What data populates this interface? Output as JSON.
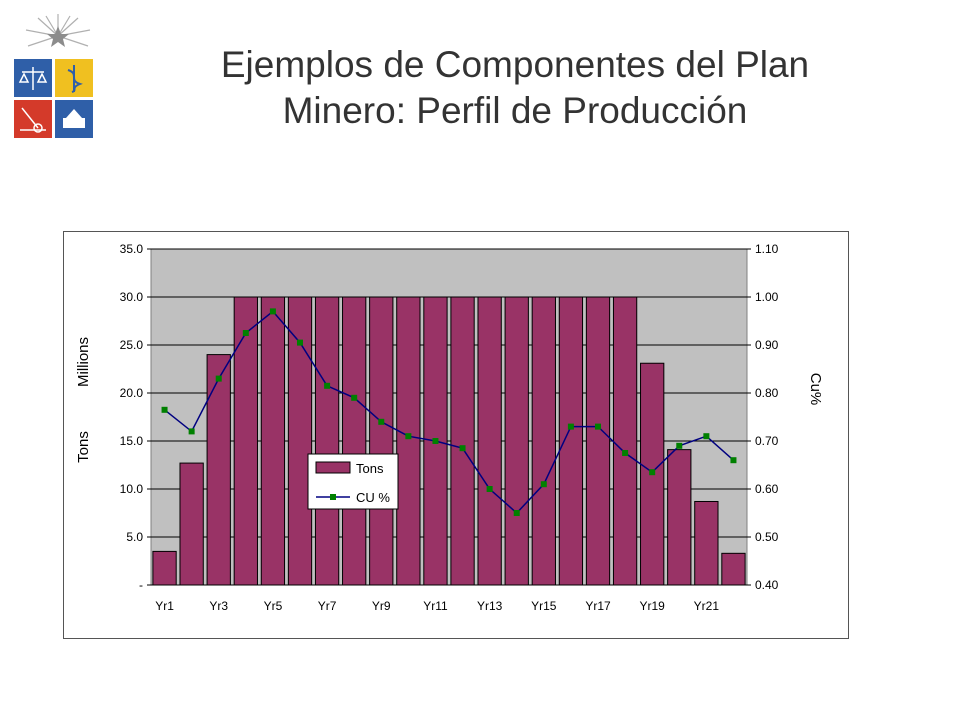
{
  "slide": {
    "title_line1": "Ejemplos de Componentes del Plan",
    "title_line2": "Minero: Perfil de Producción"
  },
  "logo": {
    "icon": "university-coat-of-arms-icon"
  },
  "colors": {
    "bar_fill": "#993366",
    "bar_stroke": "#000000",
    "line": "#000080",
    "marker": "#008000",
    "plot_background": "#c0c0c0",
    "title_text": "#333333"
  },
  "chart_data": {
    "type": "bar",
    "categories": [
      "Yr1",
      "Yr2",
      "Yr3",
      "Yr4",
      "Yr5",
      "Yr6",
      "Yr7",
      "Yr8",
      "Yr9",
      "Yr10",
      "Yr11",
      "Yr12",
      "Yr13",
      "Yr14",
      "Yr15",
      "Yr16",
      "Yr17",
      "Yr18",
      "Yr19",
      "Yr20",
      "Yr21",
      "Yr22"
    ],
    "tick_labels": [
      "Yr1",
      "Yr3",
      "Yr5",
      "Yr7",
      "Yr9",
      "Yr11",
      "Yr13",
      "Yr15",
      "Yr17",
      "Yr19",
      "Yr21"
    ],
    "series": [
      {
        "name": "Tons",
        "type": "bar",
        "axis": "left",
        "values": [
          3.5,
          12.7,
          24.0,
          30.0,
          30.0,
          30.0,
          30.0,
          30.0,
          30.0,
          30.0,
          30.0,
          30.0,
          30.0,
          30.0,
          30.0,
          30.0,
          30.0,
          30.0,
          23.1,
          14.1,
          8.7,
          3.3
        ]
      },
      {
        "name": "CU %",
        "type": "line",
        "axis": "right",
        "values": [
          0.765,
          0.72,
          0.83,
          0.925,
          0.97,
          0.905,
          0.815,
          0.79,
          0.74,
          0.71,
          0.7,
          0.685,
          0.6,
          0.55,
          0.61,
          0.73,
          0.73,
          0.675,
          0.635,
          0.69,
          0.71,
          0.66
        ]
      }
    ],
    "y_left": {
      "min": 0,
      "max": 35,
      "ticks": [
        "-",
        "5.0",
        "10.0",
        "15.0",
        "20.0",
        "25.0",
        "30.0",
        "35.0"
      ],
      "label_tons": "Tons",
      "label_millions": "Millions"
    },
    "y_right": {
      "min": 0.4,
      "max": 1.1,
      "ticks": [
        "0.40",
        "0.50",
        "0.60",
        "0.70",
        "0.80",
        "0.90",
        "1.00",
        "1.10"
      ],
      "label": "Cu%"
    },
    "grid": true,
    "legend": {
      "position": "center-left",
      "entries": [
        "Tons",
        "CU %"
      ]
    }
  }
}
